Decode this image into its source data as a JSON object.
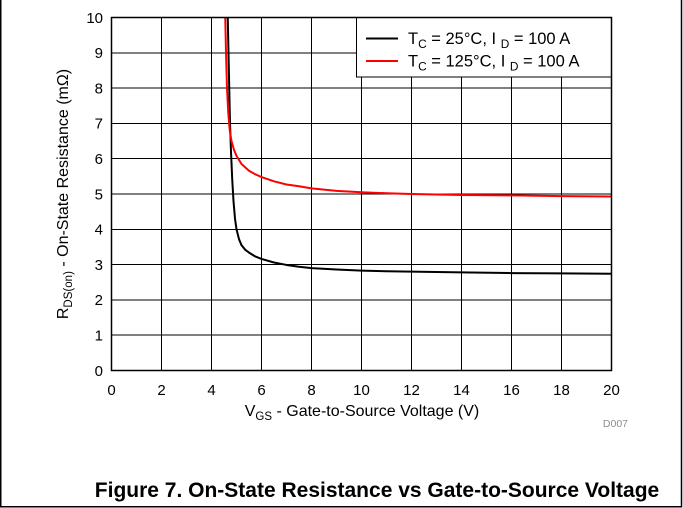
{
  "chart_data": {
    "type": "line",
    "title": "Figure 7. On-State Resistance vs Gate-to-Source Voltage",
    "annotations": [
      "D007"
    ],
    "xlabel_parts": [
      {
        "text": "V"
      },
      {
        "text": "GS",
        "sub": true
      },
      {
        "text": " - Gate-to-Source Voltage (V)"
      }
    ],
    "ylabel_parts": [
      {
        "text": "R"
      },
      {
        "text": "DS(on)",
        "sub": true
      },
      {
        "text": " - On-State Resistance (mΩ)"
      }
    ],
    "xlim": [
      0,
      20
    ],
    "ylim": [
      0,
      10
    ],
    "xticks": [
      0,
      2,
      4,
      6,
      8,
      10,
      12,
      14,
      16,
      18,
      20
    ],
    "yticks": [
      0,
      1,
      2,
      3,
      4,
      5,
      6,
      7,
      8,
      9,
      10
    ],
    "grid": true,
    "legend": "top-right",
    "series": [
      {
        "label_parts": [
          {
            "text": "T"
          },
          {
            "text": "C",
            "sub": true
          },
          {
            "text": " = 25°C, I "
          },
          {
            "text": "D",
            "sub": true
          },
          {
            "text": " = 100 A"
          }
        ],
        "color": "#000000",
        "x": [
          4.65,
          4.68,
          4.71,
          4.74,
          4.78,
          4.83,
          4.88,
          4.94,
          5.0,
          5.1,
          5.2,
          5.35,
          5.5,
          5.75,
          6.0,
          6.5,
          7.0,
          7.5,
          8.0,
          9.0,
          10.0,
          11.0,
          12.0,
          14.0,
          16.0,
          18.0,
          20.0
        ],
        "y": [
          10.0,
          9.0,
          8.0,
          7.0,
          6.2,
          5.4,
          4.8,
          4.3,
          4.0,
          3.72,
          3.55,
          3.42,
          3.34,
          3.23,
          3.16,
          3.06,
          2.99,
          2.94,
          2.9,
          2.86,
          2.83,
          2.81,
          2.8,
          2.78,
          2.76,
          2.75,
          2.74
        ]
      },
      {
        "label_parts": [
          {
            "text": "T"
          },
          {
            "text": "C",
            "sub": true
          },
          {
            "text": " = 125°C, I "
          },
          {
            "text": "D",
            "sub": true
          },
          {
            "text": " = 100 A"
          }
        ],
        "color": "#ff0000",
        "x": [
          4.55,
          4.58,
          4.62,
          4.67,
          4.73,
          4.8,
          4.9,
          5.0,
          5.2,
          5.5,
          5.75,
          6.0,
          6.5,
          7.0,
          7.5,
          8.0,
          9.0,
          10.0,
          11.0,
          12.0,
          14.0,
          16.0,
          18.0,
          20.0
        ],
        "y": [
          10.0,
          9.0,
          8.0,
          7.3,
          6.8,
          6.5,
          6.25,
          6.08,
          5.85,
          5.66,
          5.56,
          5.48,
          5.36,
          5.27,
          5.22,
          5.16,
          5.09,
          5.05,
          5.02,
          5.0,
          4.97,
          4.96,
          4.94,
          4.93
        ]
      }
    ]
  }
}
